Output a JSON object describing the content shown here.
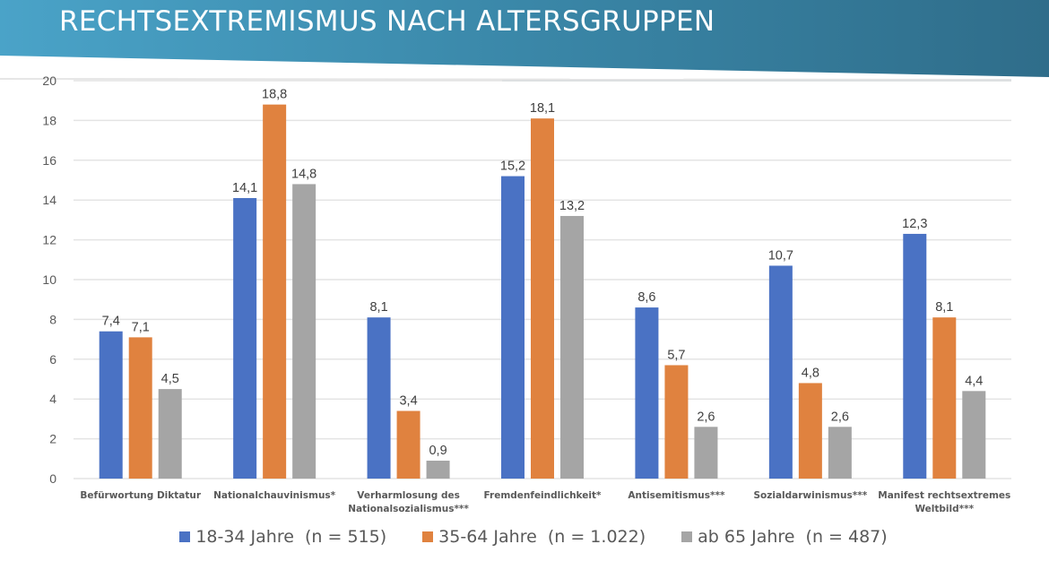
{
  "header": {
    "title": "RECHTSEXTREMISMUS NACH ALTERSGRUPPEN"
  },
  "colors": {
    "header_light": "#4aa3c8",
    "header_dark": "#2f6f8c",
    "series1": "#4a72c4",
    "series2": "#e0823f",
    "series3": "#a5a5a5",
    "grid": "#e4e4e4"
  },
  "chart_data": {
    "type": "bar",
    "title": "RECHTSEXTREMISMUS NACH ALTERSGRUPPEN",
    "xlabel": "",
    "ylabel": "",
    "ylim": [
      0,
      20
    ],
    "yticks": [
      "0",
      "2",
      "4",
      "6",
      "8",
      "10",
      "12",
      "14",
      "16",
      "18",
      "20"
    ],
    "grid": true,
    "legend_position": "bottom",
    "categories": [
      [
        "Befürwortung Diktatur"
      ],
      [
        "Nationalchauvinismus*"
      ],
      [
        "Verharmlosung des",
        "Nationalsozialismus***"
      ],
      [
        "Fremdenfeindlichkeit*"
      ],
      [
        "Antisemitismus***"
      ],
      [
        "Sozialdarwinismus***"
      ],
      [
        "Manifest rechtsextremes",
        "Weltbild***"
      ]
    ],
    "series": [
      {
        "name": "18-34 Jahre  (n = 515)",
        "values": [
          7.4,
          14.1,
          8.1,
          15.2,
          8.6,
          10.7,
          12.3
        ],
        "labels": [
          "7,4",
          "14,1",
          "8,1",
          "15,2",
          "8,6",
          "10,7",
          "12,3"
        ]
      },
      {
        "name": "35-64 Jahre  (n = 1.022)",
        "values": [
          7.1,
          18.8,
          3.4,
          18.1,
          5.7,
          4.8,
          8.1
        ],
        "labels": [
          "7,1",
          "18,8",
          "3,4",
          "18,1",
          "5,7",
          "4,8",
          "8,1"
        ]
      },
      {
        "name": "ab 65 Jahre  (n = 487)",
        "values": [
          4.5,
          14.8,
          0.9,
          13.2,
          2.6,
          2.6,
          4.4
        ],
        "labels": [
          "4,5",
          "14,8",
          "0,9",
          "13,2",
          "2,6",
          "2,6",
          "4,4"
        ]
      }
    ]
  }
}
